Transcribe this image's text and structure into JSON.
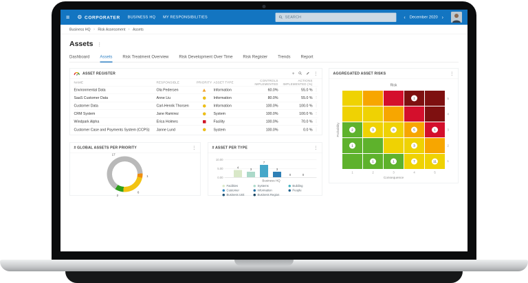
{
  "icons": {
    "hamburger": "≡",
    "gear": "⚙",
    "kebab": "⋮",
    "plus": "+",
    "chevron_left": "‹",
    "chevron_right": "›",
    "breadcrumb_sep": "›"
  },
  "colors": {
    "topbar": "#1375c1",
    "accent": "#2e7fc2"
  },
  "topbar": {
    "logo": "CORPORATER",
    "nav": [
      "BUSINESS HQ",
      "MY RESPONSIBILITIES"
    ],
    "search_placeholder": "SEARCH",
    "date": "December 2020"
  },
  "breadcrumb": {
    "items": [
      "Business HQ",
      "Risk Assessment",
      "Assets"
    ]
  },
  "page": {
    "title": "Assets"
  },
  "tabs": {
    "items": [
      {
        "label": "Dashboard"
      },
      {
        "label": "Assets",
        "active": true
      },
      {
        "label": "Risk Treatment Overview"
      },
      {
        "label": "Risk Development Over Time"
      },
      {
        "label": "Risk Register"
      },
      {
        "label": "Trends"
      },
      {
        "label": "Report"
      }
    ]
  },
  "asset_register": {
    "title": "ASSET REGISTER",
    "columns": [
      "NAME",
      "RESPONSIBLE",
      "PRIORITY",
      "ASSET TYPE",
      "CONTROLS IMPLEMENTED",
      "ACTIONS IMPLEMENTED (%)"
    ],
    "rows": [
      {
        "name": "Environmental Data",
        "responsible": "Ola Pedersen",
        "priority": "triangle-amber",
        "asset_type": "Information",
        "controls_implemented": "60.0%",
        "actions_implemented": "55.0 %"
      },
      {
        "name": "SaaS Customer Data",
        "responsible": "Anne Liu",
        "priority": "circle-yellow",
        "asset_type": "Information",
        "controls_implemented": "80.0%",
        "actions_implemented": "55.0 %"
      },
      {
        "name": "Customer Data",
        "responsible": "Carl-Henrik Thorsen",
        "priority": "circle-yellow",
        "asset_type": "Information",
        "controls_implemented": "100.0%",
        "actions_implemented": "100.0 %"
      },
      {
        "name": "CRM System",
        "responsible": "Jane Ramirez",
        "priority": "circle-yellow",
        "asset_type": "System",
        "controls_implemented": "100.0%",
        "actions_implemented": "100.0 %"
      },
      {
        "name": "Windpark Alpha",
        "responsible": "Erica Holmes",
        "priority": "square-red",
        "asset_type": "Facility",
        "controls_implemented": "100.0%",
        "actions_implemented": "70.0 %"
      },
      {
        "name": "Customer Case and Payments System (CCPS)",
        "responsible": "Janne Lund",
        "priority": "circle-yellow",
        "asset_type": "System",
        "controls_implemented": "100.0%",
        "actions_implemented": "0.0 %"
      }
    ]
  },
  "chart_data": [
    {
      "type": "pie",
      "donut": true,
      "panel_title": "# GLOBAL ASSETS PER PRIORITY",
      "start_angle_deg": 88,
      "segments": [
        {
          "label": "1",
          "value": 1,
          "color": "#ef8d10"
        },
        {
          "label": "6",
          "value": 6,
          "color": "#f2c313"
        },
        {
          "label": "2",
          "value": 2,
          "color": "#2f9e1d"
        },
        {
          "label": "17",
          "value": 17,
          "color": "#b9b9b9"
        }
      ]
    },
    {
      "type": "bar",
      "panel_title": "# ASSET PER TYPE",
      "group_label": "Business HQ",
      "categories": [
        "Facilities",
        "Systems",
        "Building",
        "Customer",
        "Information",
        "People"
      ],
      "values": [
        4,
        3,
        7,
        3,
        0,
        0
      ],
      "bar_colors": [
        "#d9e8c8",
        "#abd9c9",
        "#45a7c9",
        "#2e7fb5",
        "#2e7fb5",
        "#1f5d8c"
      ],
      "ylim": [
        0,
        10
      ],
      "yticks": [
        "10.00",
        "5.00",
        "0.00"
      ],
      "legend_columns": [
        [
          {
            "label": "Facilities",
            "color": "#d9e8c8"
          },
          {
            "label": "Customer",
            "color": "#2e86c1"
          },
          {
            "label": "Business Unit",
            "color": "#1b4f72"
          }
        ],
        [
          {
            "label": "Systems",
            "color": "#abd9c9"
          },
          {
            "label": "Information",
            "color": "#2471a3"
          },
          {
            "label": "Business Region",
            "color": "#15415e"
          }
        ],
        [
          {
            "label": "Building",
            "color": "#45b4c2"
          },
          {
            "label": "People",
            "color": "#21618c"
          }
        ]
      ]
    },
    {
      "type": "heatmap",
      "panel_title": "AGGREGATED ASSET RISKS",
      "title": "Risk",
      "xlabel": "Consequence",
      "ylabel": "Probability",
      "x_ticks": [
        "1",
        "2",
        "3",
        "4",
        "5"
      ],
      "y_ticks": [
        "5",
        "4",
        "3",
        "2",
        "1"
      ],
      "palette": {
        "green": "#5eb22c",
        "yellow": "#efd203",
        "orange": "#f7a600",
        "red": "#d40f2c",
        "darkred": "#7e1010"
      },
      "rows": [
        [
          {
            "color": "yellow"
          },
          {
            "color": "orange"
          },
          {
            "color": "red"
          },
          {
            "color": "darkred",
            "count": "1"
          },
          {
            "color": "darkred"
          }
        ],
        [
          {
            "color": "yellow"
          },
          {
            "color": "yellow"
          },
          {
            "color": "orange"
          },
          {
            "color": "red"
          },
          {
            "color": "darkred"
          }
        ],
        [
          {
            "color": "green",
            "count": "2"
          },
          {
            "color": "yellow",
            "count": "3"
          },
          {
            "color": "yellow",
            "count": "8"
          },
          {
            "color": "orange",
            "count": "5"
          },
          {
            "color": "red",
            "count": "1"
          }
        ],
        [
          {
            "color": "green",
            "count": "1"
          },
          {
            "color": "green"
          },
          {
            "color": "yellow"
          },
          {
            "color": "yellow",
            "count": "3"
          },
          {
            "color": "orange"
          }
        ],
        [
          {
            "color": "green"
          },
          {
            "color": "green",
            "count": "1"
          },
          {
            "color": "green",
            "count": "1"
          },
          {
            "color": "yellow",
            "count": "7"
          },
          {
            "color": "yellow",
            "count": "11"
          }
        ]
      ]
    }
  ]
}
